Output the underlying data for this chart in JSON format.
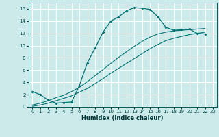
{
  "xlabel": "Humidex (Indice chaleur)",
  "bg_color": "#cceaea",
  "grid_color": "#ffffff",
  "line_color": "#007070",
  "xlim": [
    -0.5,
    23.5
  ],
  "ylim": [
    0,
    17
  ],
  "xtick_vals": [
    0,
    1,
    2,
    3,
    4,
    5,
    6,
    7,
    8,
    9,
    10,
    11,
    12,
    13,
    14,
    15,
    16,
    17,
    18,
    19,
    20,
    21,
    22,
    23
  ],
  "ytick_vals": [
    0,
    2,
    4,
    6,
    8,
    10,
    12,
    14,
    16
  ],
  "curve1_x": [
    0,
    1,
    2,
    3,
    4,
    5,
    6,
    7,
    8,
    9,
    10,
    11,
    12,
    13,
    14,
    15,
    16,
    17,
    18,
    19,
    20,
    21,
    22
  ],
  "curve1_y": [
    2.5,
    2.0,
    1.1,
    0.6,
    0.7,
    0.8,
    3.5,
    7.2,
    9.6,
    12.2,
    14.0,
    14.7,
    15.7,
    16.2,
    16.1,
    15.9,
    14.7,
    13.0,
    12.5,
    12.6,
    12.7,
    12.0,
    11.9
  ],
  "curve2_x": [
    0,
    1,
    2,
    3,
    4,
    5,
    6,
    7,
    8,
    9,
    10,
    11,
    12,
    13,
    14,
    15,
    16,
    17,
    18,
    19,
    20,
    21,
    22
  ],
  "curve2_y": [
    0.3,
    0.6,
    1.0,
    1.5,
    1.9,
    2.5,
    3.2,
    4.1,
    5.1,
    6.1,
    7.1,
    8.1,
    9.0,
    9.9,
    10.7,
    11.4,
    11.9,
    12.2,
    12.4,
    12.5,
    12.6,
    12.7,
    12.8
  ],
  "curve3_x": [
    0,
    1,
    2,
    3,
    4,
    5,
    6,
    7,
    8,
    9,
    10,
    11,
    12,
    13,
    14,
    15,
    16,
    17,
    18,
    19,
    20,
    21,
    22
  ],
  "curve3_y": [
    0.1,
    0.3,
    0.6,
    1.0,
    1.4,
    1.8,
    2.4,
    3.0,
    3.8,
    4.6,
    5.5,
    6.3,
    7.1,
    7.9,
    8.7,
    9.5,
    10.2,
    10.8,
    11.2,
    11.5,
    11.8,
    12.0,
    12.2
  ]
}
